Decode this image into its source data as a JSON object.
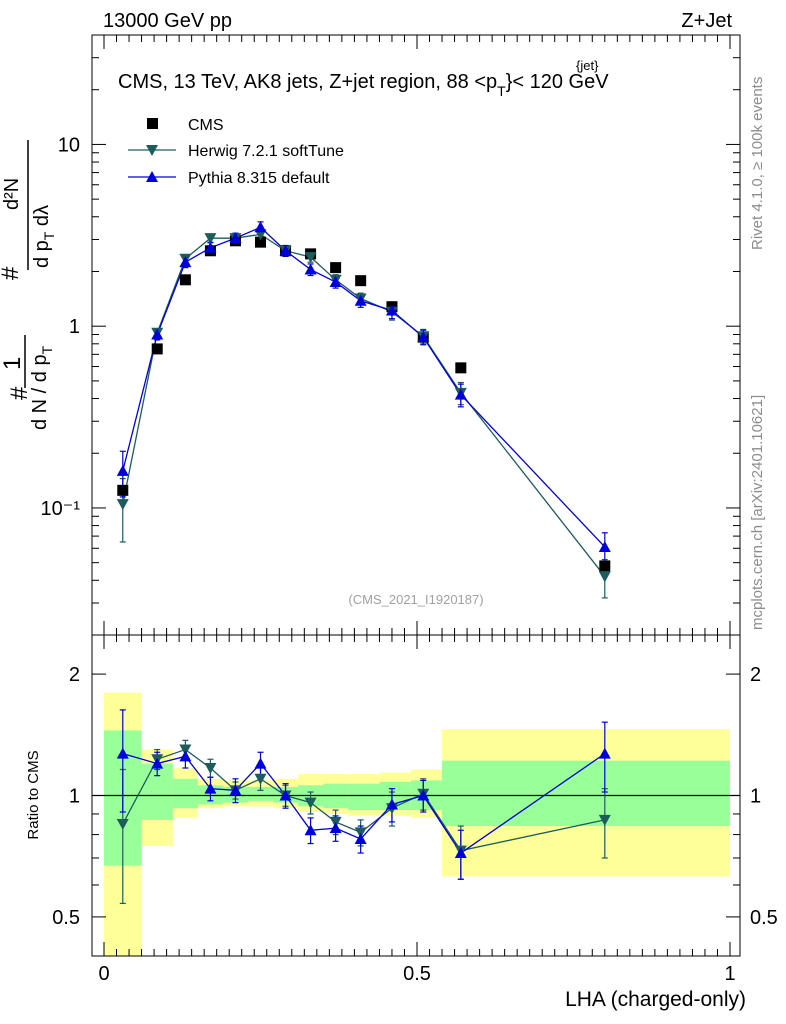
{
  "header": {
    "left": "13000 GeV pp",
    "right": "Z+Jet"
  },
  "side_text": {
    "rivet": "Rivet 4.1.0, ≥ 100k events",
    "mcplots": "mcplots.cern.ch [arXiv:2401.10621]"
  },
  "colors": {
    "cms": "#000000",
    "herwig": "#1d5c5c",
    "pythia": "#0000dd",
    "band_inner": "#99ff99",
    "band_outer": "#ffff99"
  },
  "chart_data": [
    {
      "type": "scatter",
      "panel": "main",
      "title": "CMS, 13 TeV, AK8 jets, Z+jet region, 88 < p_T^{jet} < 120 GeV",
      "title_parts": {
        "main": "CMS, 13 TeV, AK8 jets, Z+jet region, 88 <p",
        "sub": "T",
        "sup": "{jet}",
        "tail": "}< 120 GeV"
      },
      "ylabel_parts": {
        "p1": "1",
        "p2": "d N / d p",
        "p3": "T",
        "p4": "d²N",
        "p5": "d p",
        "p6": "T",
        "p7": " dλ",
        "hash": "#"
      },
      "yscale": "log",
      "ylim": [
        0.02,
        40
      ],
      "xlim": [
        0,
        1
      ],
      "y_tick_labels": [
        "10⁻¹",
        "1",
        "10"
      ],
      "y_tick_values": [
        0.1,
        1,
        10
      ],
      "watermark": "(CMS_2021_I1920187)",
      "legend_position": "top-left",
      "legend": [
        "CMS",
        "Herwig 7.2.1 softTune",
        "Pythia 8.315 default"
      ],
      "x": [
        0.03,
        0.085,
        0.13,
        0.17,
        0.21,
        0.25,
        0.29,
        0.33,
        0.37,
        0.41,
        0.46,
        0.51,
        0.57,
        0.8
      ],
      "bin_edges": [
        0,
        0.06,
        0.11,
        0.15,
        0.19,
        0.23,
        0.27,
        0.31,
        0.35,
        0.39,
        0.44,
        0.49,
        0.54,
        0.6,
        1.0
      ],
      "series": [
        {
          "name": "CMS",
          "marker": "square",
          "values": [
            0.125,
            0.75,
            1.8,
            2.6,
            2.95,
            2.9,
            2.6,
            2.5,
            2.1,
            1.78,
            1.28,
            0.87,
            0.59,
            0.048
          ]
        },
        {
          "name": "Herwig 7.2.1 softTune",
          "marker": "triangle-down",
          "values": [
            0.105,
            0.92,
            2.35,
            3.05,
            3.05,
            3.2,
            2.6,
            2.4,
            1.8,
            1.42,
            1.2,
            0.88,
            0.43,
            0.042
          ],
          "errors": [
            0.04,
            0.05,
            0.12,
            0.15,
            0.15,
            0.2,
            0.15,
            0.15,
            0.12,
            0.1,
            0.12,
            0.08,
            0.06,
            0.01
          ]
        },
        {
          "name": "Pythia 8.315 default",
          "marker": "triangle-up",
          "values": [
            0.16,
            0.9,
            2.25,
            2.7,
            3.05,
            3.5,
            2.6,
            2.05,
            1.75,
            1.38,
            1.22,
            0.87,
            0.42,
            0.061
          ],
          "errors": [
            0.045,
            0.06,
            0.15,
            0.18,
            0.2,
            0.25,
            0.18,
            0.15,
            0.13,
            0.11,
            0.12,
            0.08,
            0.06,
            0.012
          ]
        }
      ]
    },
    {
      "type": "scatter",
      "panel": "ratio",
      "ylabel": "Ratio to CMS",
      "xlabel": "LHA (charged-only)",
      "yscale": "log",
      "ylim": [
        0.4,
        2.5
      ],
      "xlim": [
        0,
        1
      ],
      "x_tick_labels": [
        "0",
        "0.5",
        "1"
      ],
      "x_tick_values": [
        0,
        0.5,
        1
      ],
      "y_tick_labels": [
        "0.5",
        "1",
        "2"
      ],
      "y_tick_values": [
        0.5,
        1,
        2
      ],
      "band_inner": [
        [
          0.67,
          1.45
        ],
        [
          0.87,
          1.2
        ],
        [
          0.93,
          1.1
        ],
        [
          0.95,
          1.06
        ],
        [
          0.96,
          1.05
        ],
        [
          0.97,
          1.05
        ],
        [
          0.96,
          1.05
        ],
        [
          0.94,
          1.06
        ],
        [
          0.93,
          1.07
        ],
        [
          0.92,
          1.07
        ],
        [
          0.92,
          1.08
        ],
        [
          0.92,
          1.09
        ],
        [
          0.84,
          1.22
        ],
        [
          0.84,
          1.22
        ]
      ],
      "band_outer": [
        [
          0.3,
          1.8
        ],
        [
          0.75,
          1.3
        ],
        [
          0.88,
          1.17
        ],
        [
          0.93,
          1.1
        ],
        [
          0.94,
          1.09
        ],
        [
          0.94,
          1.09
        ],
        [
          0.93,
          1.1
        ],
        [
          0.91,
          1.13
        ],
        [
          0.9,
          1.13
        ],
        [
          0.89,
          1.13
        ],
        [
          0.89,
          1.14
        ],
        [
          0.88,
          1.16
        ],
        [
          0.63,
          1.46
        ],
        [
          0.63,
          1.46
        ]
      ],
      "series": [
        {
          "name": "Herwig 7.2.1 softTune",
          "values": [
            0.85,
            1.23,
            1.3,
            1.17,
            1.03,
            1.1,
            1.0,
            0.96,
            0.86,
            0.81,
            0.93,
            1.01,
            0.73,
            0.87
          ],
          "errors": [
            0.31,
            0.07,
            0.07,
            0.06,
            0.05,
            0.07,
            0.06,
            0.06,
            0.06,
            0.06,
            0.09,
            0.09,
            0.11,
            0.17
          ]
        },
        {
          "name": "Pythia 8.315 default",
          "values": [
            1.27,
            1.2,
            1.25,
            1.04,
            1.03,
            1.2,
            1.0,
            0.82,
            0.83,
            0.78,
            0.95,
            1.0,
            0.72,
            1.27
          ],
          "errors": [
            0.36,
            0.08,
            0.08,
            0.07,
            0.07,
            0.08,
            0.07,
            0.06,
            0.06,
            0.06,
            0.09,
            0.09,
            0.1,
            0.25
          ]
        }
      ]
    }
  ]
}
